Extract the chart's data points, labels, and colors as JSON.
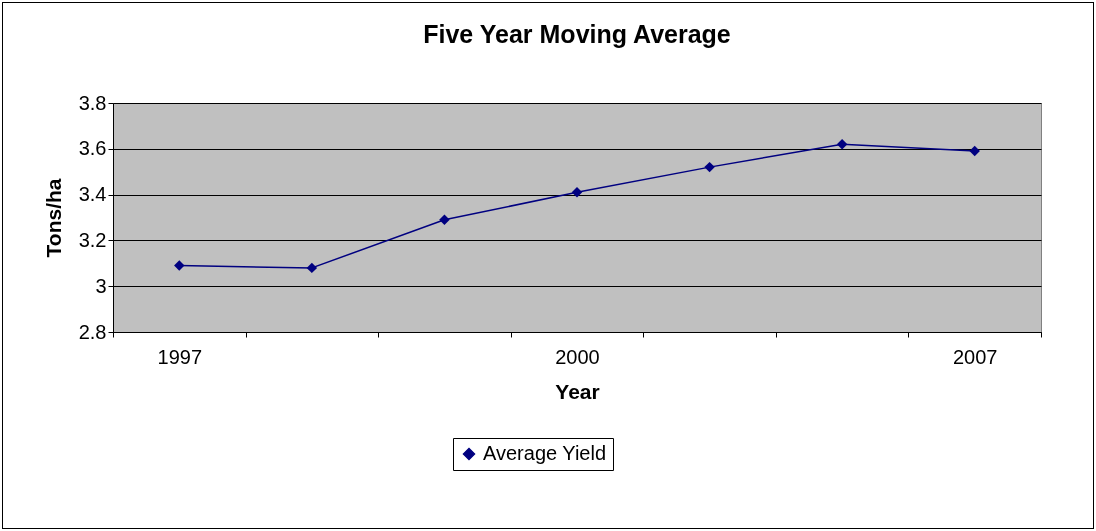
{
  "chart_data": {
    "type": "line",
    "title": "Five Year Moving Average",
    "xlabel": "Year",
    "ylabel": "Tons/ha",
    "categories": [
      "1997",
      null,
      null,
      "2000",
      null,
      null,
      "2007"
    ],
    "series": [
      {
        "name": "Average Yield",
        "color": "#000080",
        "values": [
          3.09,
          3.08,
          3.29,
          3.41,
          3.52,
          3.62,
          3.59
        ]
      }
    ],
    "ylim": [
      2.8,
      3.8
    ],
    "yticks": [
      2.8,
      3,
      3.2,
      3.4,
      3.6,
      3.8
    ],
    "grid": "y",
    "legend": "bottom",
    "marker": "diamond",
    "line_style": "solid"
  }
}
